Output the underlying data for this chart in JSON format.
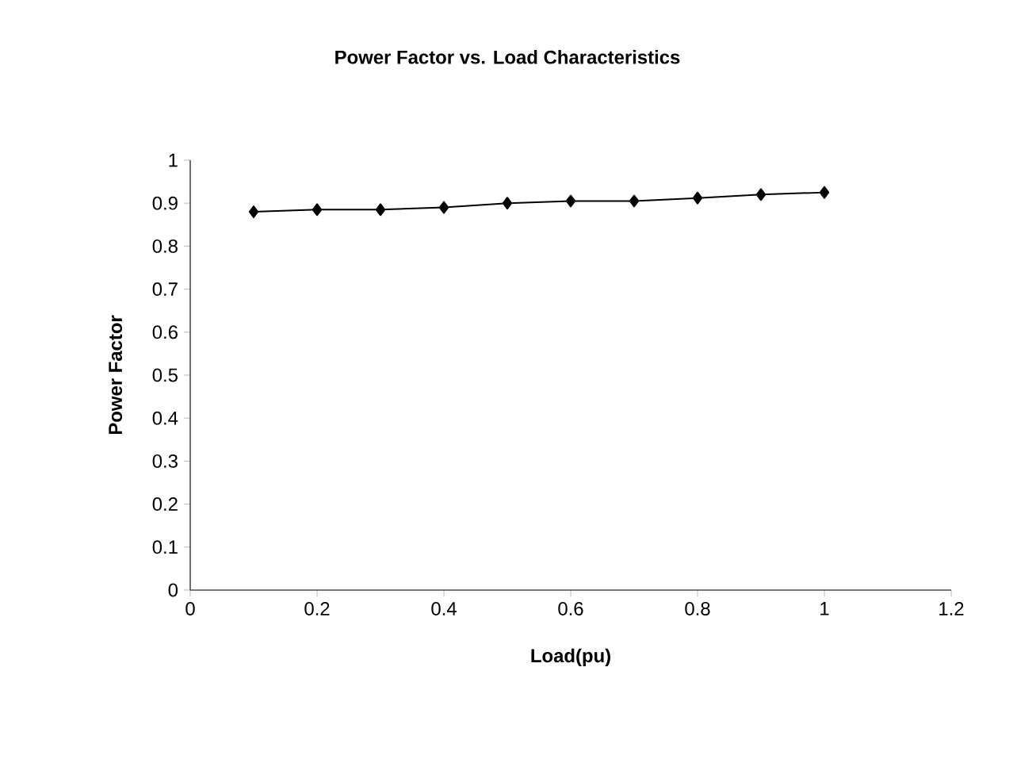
{
  "chart_data": {
    "type": "line",
    "title": "Power Factor vs. Load Characteristics",
    "xlabel": "Load(pu)",
    "ylabel": "Power Factor",
    "x": [
      0.1,
      0.2,
      0.3,
      0.4,
      0.5,
      0.6,
      0.7,
      0.8,
      0.9,
      1.0
    ],
    "series": [
      {
        "color": "#000000",
        "values": [
          0.88,
          0.885,
          0.885,
          0.89,
          0.9,
          0.905,
          0.905,
          0.912,
          0.92,
          0.925
        ]
      }
    ],
    "xlim": [
      0,
      1.2
    ],
    "xticks": [
      0,
      0.2,
      0.4,
      0.6,
      0.8,
      1,
      1.2
    ],
    "ylim": [
      0,
      1
    ],
    "yticks": [
      0,
      0.1,
      0.2,
      0.3,
      0.4,
      0.5,
      0.6,
      0.7,
      0.8,
      0.9,
      1
    ],
    "grid": false,
    "marker": "diamond",
    "line_style": "solid"
  }
}
